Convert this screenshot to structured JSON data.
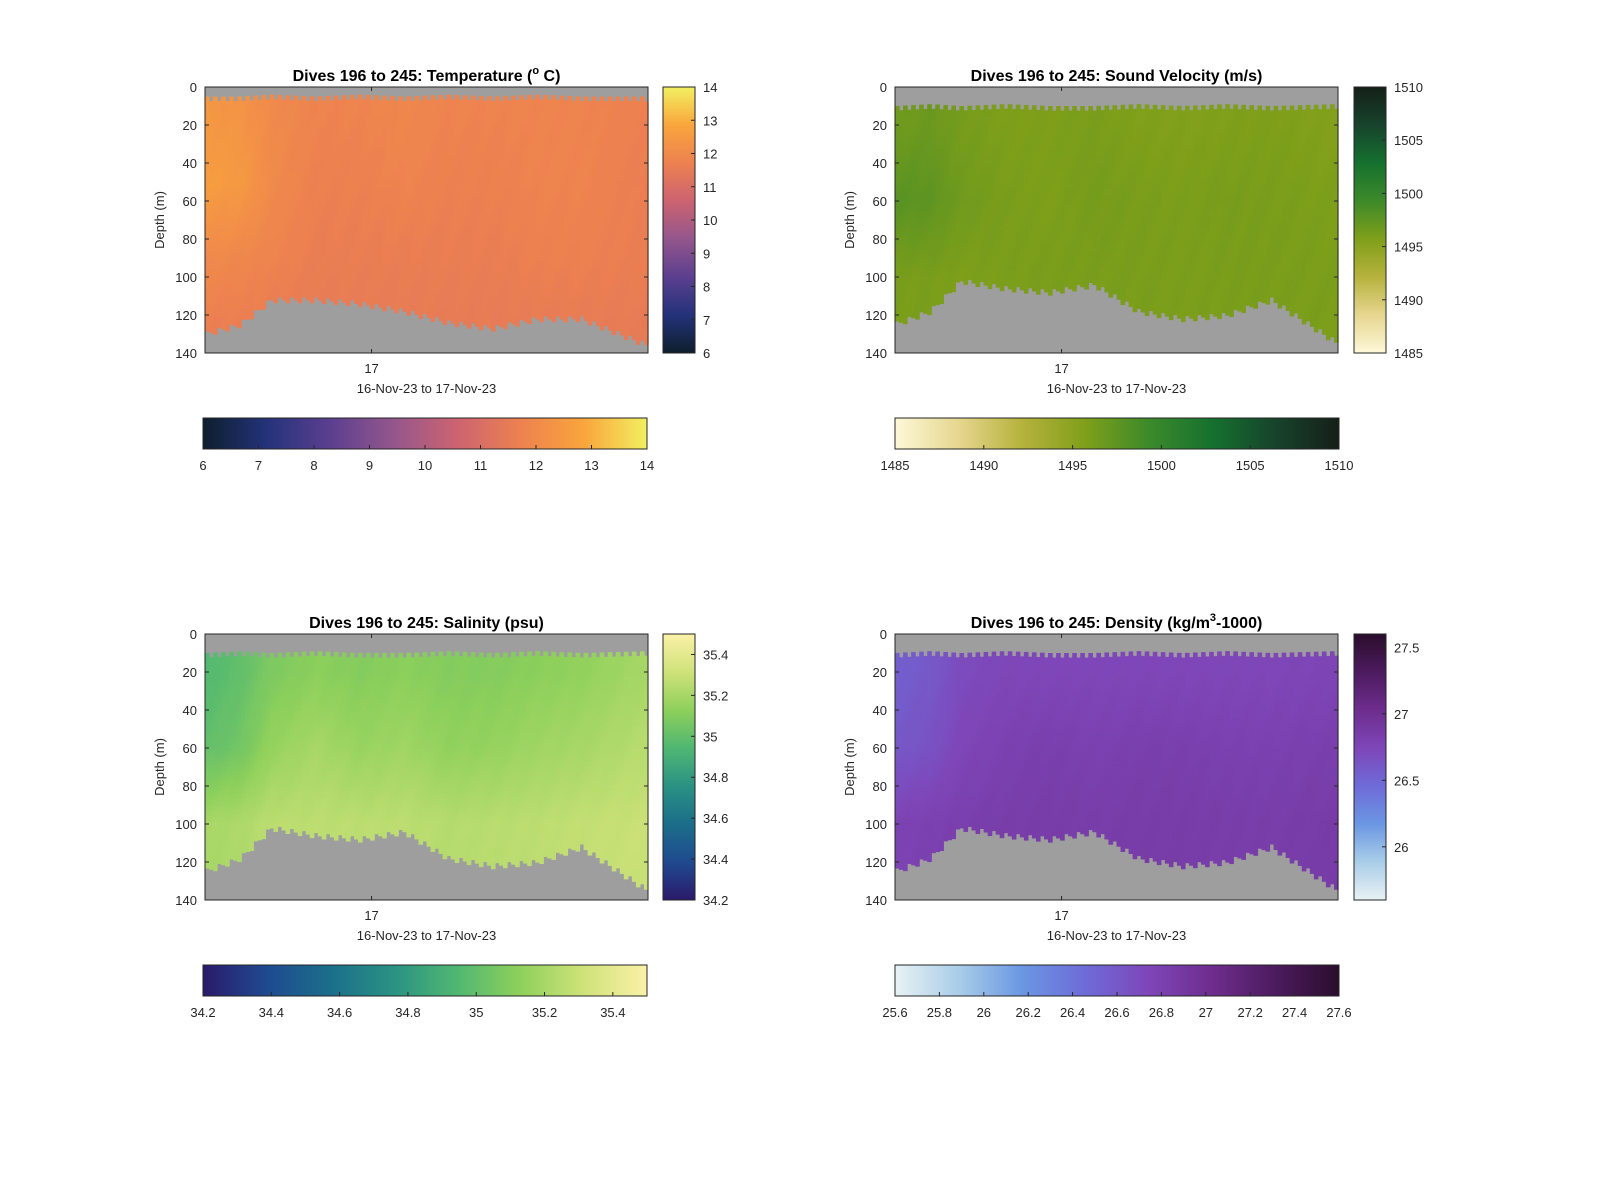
{
  "figure": {
    "background": "#ffffff",
    "nan_color": "#9e9e9e",
    "panels": [
      {
        "id": "temperature",
        "title": "Dives 196 to 245: Temperature (",
        "title_sup": "o",
        "title_tail": " C)",
        "ylabel": "Depth (m)",
        "xlabel": "16-Nov-23 to 17-Nov-23",
        "x_tick_label": "17",
        "colormap": [
          "#0d1f2d",
          "#24327a",
          "#5b3f8f",
          "#94568c",
          "#cc6371",
          "#ed8150",
          "#f9a53c",
          "#f2f060"
        ],
        "colorbar_right_ticks": [
          "6",
          "7",
          "8",
          "9",
          "10",
          "11",
          "12",
          "13",
          "14"
        ],
        "colorbar_bottom_ticks": [
          "6",
          "7",
          "8",
          "9",
          "10",
          "11",
          "12",
          "13",
          "14"
        ]
      },
      {
        "id": "sound-velocity",
        "title": "Dives 196 to 245: Sound Velocity (m/s)",
        "title_sup": "",
        "title_tail": "",
        "ylabel": "Depth (m)",
        "xlabel": "16-Nov-23 to 17-Nov-23",
        "x_tick_label": "17",
        "colormap": [
          "#fdf8d8",
          "#e6d68f",
          "#b6b23d",
          "#7f9f1a",
          "#3d8a2a",
          "#15712f",
          "#17432c",
          "#151f18"
        ],
        "colorbar_right_ticks": [
          "1485",
          "1490",
          "1495",
          "1500",
          "1505",
          "1510"
        ],
        "colorbar_bottom_ticks": [
          "1485",
          "1490",
          "1495",
          "1500",
          "1505",
          "1510"
        ]
      },
      {
        "id": "salinity",
        "title": "Dives 196 to 245: Salinity (psu)",
        "title_sup": "",
        "title_tail": "",
        "ylabel": "Depth (m)",
        "xlabel": "16-Nov-23 to 17-Nov-23",
        "x_tick_label": "17",
        "colormap": [
          "#2b1a6b",
          "#1f4a90",
          "#1b6e8a",
          "#2a9283",
          "#4fb772",
          "#8ed05b",
          "#cfe27a",
          "#fbf1a7"
        ],
        "colorbar_right_ticks": [
          "34.2",
          "34.4",
          "34.6",
          "34.8",
          "35",
          "35.2",
          "35.4"
        ],
        "colorbar_bottom_ticks": [
          "34.2",
          "34.4",
          "34.6",
          "34.8",
          "35",
          "35.2",
          "35.4"
        ]
      },
      {
        "id": "density",
        "title": "Dives 196 to 245: Density (kg/m",
        "title_sup": "3",
        "title_tail": "-1000)",
        "ylabel": "Depth (m)",
        "xlabel": "16-Nov-23 to 17-Nov-23",
        "x_tick_label": "17",
        "colormap": [
          "#e8f2f4",
          "#a9cde8",
          "#6b97e3",
          "#6e6bd8",
          "#7e46b8",
          "#6e2d8e",
          "#4c1b5e",
          "#2a0d2c"
        ],
        "colorbar_right_ticks": [
          "26",
          "26.5",
          "27",
          "27.5"
        ],
        "colorbar_bottom_ticks": [
          "25.6",
          "25.8",
          "26",
          "26.2",
          "26.4",
          "26.6",
          "26.8",
          "27",
          "27.2",
          "27.4",
          "27.6"
        ]
      }
    ]
  },
  "chart_data": [
    {
      "type": "heatmap",
      "title": "Dives 196 to 245: Temperature (° C)",
      "xlabel": "16-Nov-23 to 17-Nov-23",
      "ylabel": "Depth (m)",
      "x_ticks": [
        "17"
      ],
      "y_ticks": [
        0,
        20,
        40,
        60,
        80,
        100,
        120,
        140
      ],
      "ylim": [
        0,
        140
      ],
      "y_reversed": true,
      "clim": [
        6,
        14
      ],
      "colorbar_ticks": [
        6,
        7,
        8,
        9,
        10,
        11,
        12,
        13,
        14
      ],
      "dives": [
        196,
        245
      ],
      "profile_x": [
        0,
        0.08,
        0.15,
        0.25,
        0.35,
        0.45,
        0.55,
        0.65,
        0.75,
        0.85,
        1.0
      ],
      "surface_depth": [
        5,
        5,
        4,
        5,
        4,
        5,
        4,
        5,
        4,
        5,
        5
      ],
      "bottom_depth": [
        130,
        125,
        112,
        112,
        114,
        118,
        124,
        127,
        122,
        122,
        136
      ],
      "value_rows": [
        {
          "depth": 10,
          "values": [
            12.4,
            12.3,
            12.0,
            11.8,
            11.8,
            11.9,
            11.8,
            11.8,
            11.8,
            11.8,
            11.7
          ]
        },
        {
          "depth": 50,
          "values": [
            12.6,
            12.5,
            12.0,
            11.7,
            11.7,
            11.8,
            11.7,
            11.7,
            11.8,
            11.8,
            11.6
          ]
        },
        {
          "depth": 90,
          "values": [
            12.0,
            11.9,
            11.8,
            11.6,
            11.6,
            11.6,
            11.6,
            11.6,
            11.7,
            11.7,
            11.6
          ]
        },
        {
          "depth": 130,
          "values": [
            11.6,
            11.6,
            11.5,
            11.5,
            11.5,
            11.5,
            11.5,
            11.5,
            11.5,
            11.5,
            11.5
          ]
        }
      ]
    },
    {
      "type": "heatmap",
      "title": "Dives 196 to 245: Sound Velocity (m/s)",
      "xlabel": "16-Nov-23 to 17-Nov-23",
      "ylabel": "Depth (m)",
      "x_ticks": [
        "17"
      ],
      "y_ticks": [
        0,
        20,
        40,
        60,
        80,
        100,
        120,
        140
      ],
      "ylim": [
        0,
        140
      ],
      "y_reversed": true,
      "clim": [
        1485,
        1510
      ],
      "colorbar_ticks": [
        1485,
        1490,
        1495,
        1500,
        1505,
        1510
      ],
      "dives": [
        196,
        245
      ],
      "profile_x": [
        0,
        0.08,
        0.15,
        0.25,
        0.35,
        0.45,
        0.55,
        0.65,
        0.75,
        0.85,
        1.0
      ],
      "surface_depth": [
        10,
        9,
        10,
        9,
        10,
        10,
        9,
        10,
        9,
        10,
        9
      ],
      "bottom_depth": [
        125,
        118,
        102,
        106,
        108,
        104,
        118,
        122,
        120,
        112,
        135
      ],
      "value_rows": [
        {
          "depth": 20,
          "values": [
            1496.5,
            1496.8,
            1496.2,
            1495.8,
            1495.8,
            1496.0,
            1495.7,
            1495.6,
            1495.7,
            1495.8,
            1495.5
          ]
        },
        {
          "depth": 60,
          "values": [
            1497.8,
            1497.5,
            1496.5,
            1496.0,
            1495.8,
            1496.2,
            1496.0,
            1495.9,
            1496.1,
            1496.0,
            1495.8
          ]
        },
        {
          "depth": 100,
          "values": [
            1496.0,
            1496.0,
            1495.8,
            1495.9,
            1496.0,
            1496.0,
            1496.0,
            1495.9,
            1496.0,
            1496.0,
            1495.9
          ]
        }
      ]
    },
    {
      "type": "heatmap",
      "title": "Dives 196 to 245: Salinity (psu)",
      "xlabel": "16-Nov-23 to 17-Nov-23",
      "ylabel": "Depth (m)",
      "x_ticks": [
        "17"
      ],
      "y_ticks": [
        0,
        20,
        40,
        60,
        80,
        100,
        120,
        140
      ],
      "ylim": [
        0,
        140
      ],
      "y_reversed": true,
      "clim": [
        34.2,
        35.5
      ],
      "colorbar_ticks": [
        34.2,
        34.4,
        34.6,
        34.8,
        35,
        35.2,
        35.4
      ],
      "dives": [
        196,
        245
      ],
      "profile_x": [
        0,
        0.08,
        0.15,
        0.25,
        0.35,
        0.45,
        0.55,
        0.65,
        0.75,
        0.85,
        1.0
      ],
      "surface_depth": [
        10,
        9,
        10,
        9,
        10,
        10,
        9,
        10,
        9,
        10,
        9
      ],
      "bottom_depth": [
        125,
        118,
        102,
        106,
        108,
        104,
        118,
        122,
        120,
        112,
        135
      ],
      "value_rows": [
        {
          "depth": 20,
          "values": [
            34.95,
            35.0,
            35.08,
            35.12,
            35.1,
            35.12,
            35.1,
            35.1,
            35.12,
            35.14,
            35.2
          ]
        },
        {
          "depth": 60,
          "values": [
            35.0,
            35.05,
            35.15,
            35.2,
            35.16,
            35.18,
            35.14,
            35.15,
            35.18,
            35.2,
            35.25
          ]
        },
        {
          "depth": 100,
          "values": [
            35.2,
            35.22,
            35.26,
            35.26,
            35.26,
            35.26,
            35.24,
            35.25,
            35.26,
            35.28,
            35.3
          ]
        }
      ]
    },
    {
      "type": "heatmap",
      "title": "Dives 196 to 245: Density (kg/m³-1000)",
      "xlabel": "16-Nov-23 to 17-Nov-23",
      "ylabel": "Depth (m)",
      "x_ticks": [
        "17"
      ],
      "y_ticks": [
        0,
        20,
        40,
        60,
        80,
        100,
        120,
        140
      ],
      "ylim": [
        0,
        140
      ],
      "y_reversed": true,
      "clim": [
        25.6,
        27.6
      ],
      "colorbar_ticks": [
        25.6,
        25.8,
        26,
        26.2,
        26.4,
        26.6,
        26.8,
        27,
        27.2,
        27.4,
        27.6
      ],
      "dives": [
        196,
        245
      ],
      "profile_x": [
        0,
        0.08,
        0.15,
        0.25,
        0.35,
        0.45,
        0.55,
        0.65,
        0.75,
        0.85,
        1.0
      ],
      "surface_depth": [
        10,
        9,
        10,
        9,
        10,
        10,
        9,
        10,
        9,
        10,
        9
      ],
      "bottom_depth": [
        125,
        118,
        102,
        106,
        108,
        104,
        118,
        122,
        120,
        112,
        135
      ],
      "value_rows": [
        {
          "depth": 20,
          "values": [
            26.55,
            26.6,
            26.7,
            26.74,
            26.74,
            26.74,
            26.74,
            26.74,
            26.74,
            26.74,
            26.76
          ]
        },
        {
          "depth": 60,
          "values": [
            26.6,
            26.65,
            26.75,
            26.8,
            26.82,
            26.8,
            26.82,
            26.82,
            26.8,
            26.8,
            26.82
          ]
        },
        {
          "depth": 100,
          "values": [
            26.78,
            26.8,
            26.82,
            26.84,
            26.85,
            26.84,
            26.85,
            26.85,
            26.84,
            26.84,
            26.86
          ]
        }
      ]
    }
  ]
}
